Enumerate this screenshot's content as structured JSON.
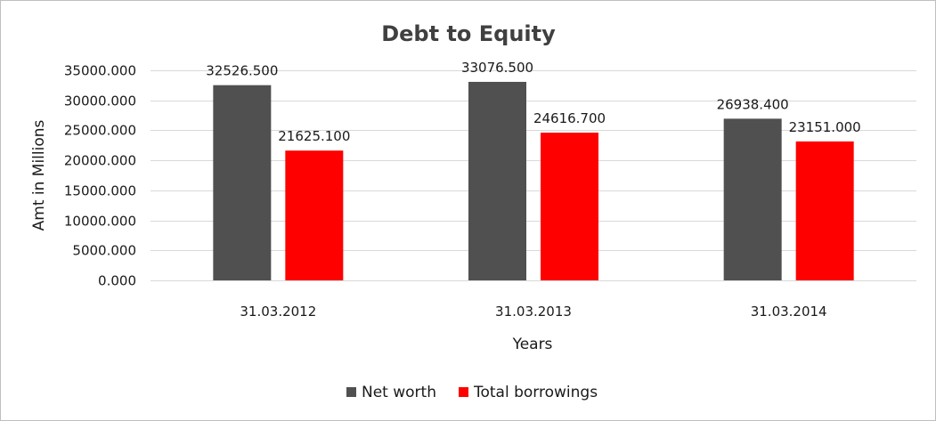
{
  "chart_data": {
    "type": "bar",
    "title": "Debt to Equity",
    "xlabel": "Years",
    "ylabel": "Amt in Millions",
    "categories": [
      "31.03.2012",
      "31.03.2013",
      "31.03.2014"
    ],
    "series": [
      {
        "name": "Net worth",
        "color": "#505050",
        "values": [
          32526.5,
          33076.5,
          26938.4
        ],
        "labels": [
          "32526.500",
          "33076.500",
          "26938.400"
        ]
      },
      {
        "name": "Total borrowings",
        "color": "#ff0000",
        "values": [
          21625.1,
          24616.7,
          23151.0
        ],
        "labels": [
          "21625.100",
          "24616.700",
          "23151.000"
        ]
      }
    ],
    "ylim": [
      0,
      35000
    ],
    "yticks": [
      0,
      5000,
      10000,
      15000,
      20000,
      25000,
      30000,
      35000
    ],
    "ytick_labels": [
      "0.000",
      "5000.000",
      "10000.000",
      "15000.000",
      "20000.000",
      "25000.000",
      "30000.000",
      "35000.000"
    ],
    "grid": true,
    "legend_position": "bottom"
  }
}
